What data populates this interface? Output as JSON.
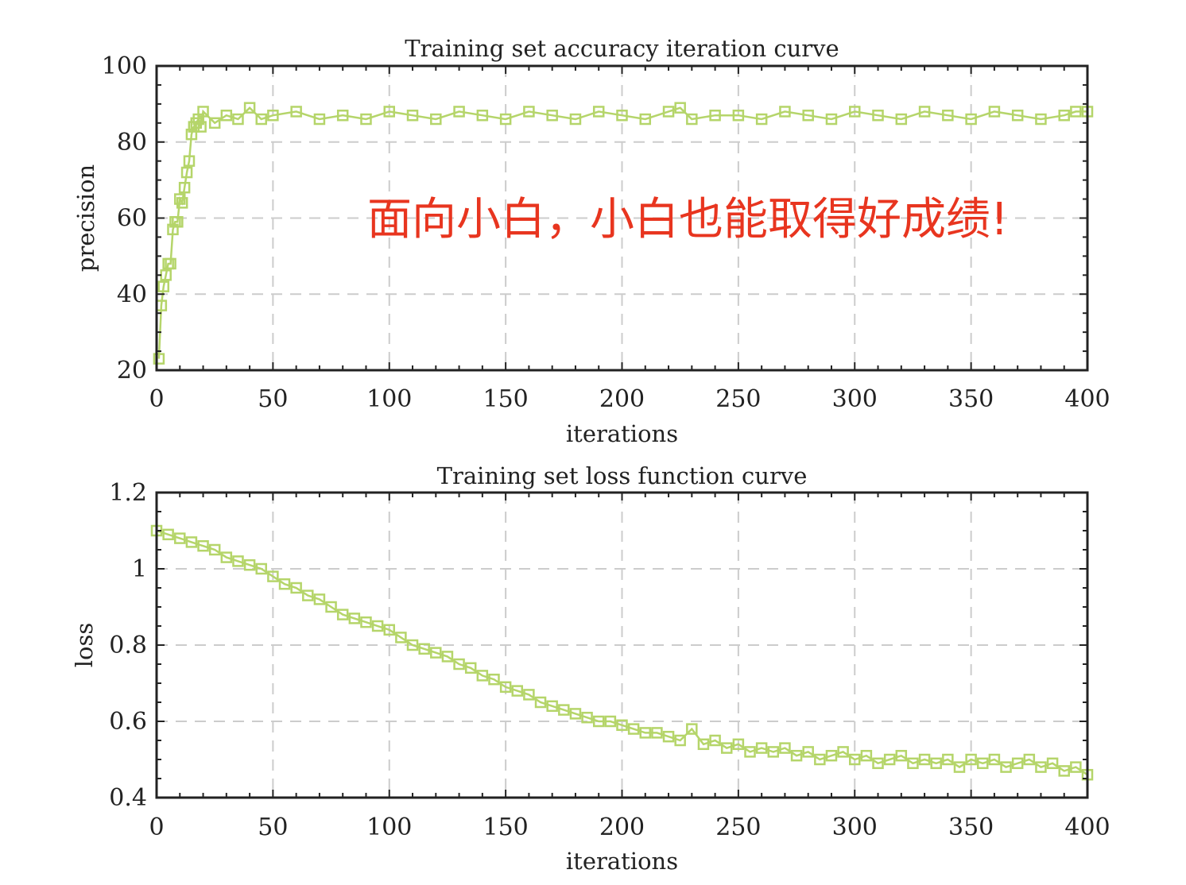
{
  "annotation": {
    "text": "面向小白，小白也能取得好成绩!",
    "color": "#e8351f"
  },
  "colors": {
    "series": "#b5d56a",
    "axis": "#222222",
    "grid": "#cccccc"
  },
  "chart_data": [
    {
      "type": "line",
      "title": "Training set accuracy iteration curve",
      "xlabel": "iterations",
      "ylabel": "precision",
      "xlim": [
        0,
        400
      ],
      "ylim": [
        20,
        100
      ],
      "xticks": [
        "0",
        "50",
        "100",
        "150",
        "200",
        "250",
        "300",
        "350",
        "400"
      ],
      "yticks": [
        "20",
        "40",
        "60",
        "80",
        "100"
      ],
      "grid": true,
      "marker": "square",
      "series": [
        {
          "x": [
            1,
            2,
            3,
            4,
            5,
            6,
            7,
            8,
            9,
            10,
            11,
            12,
            13,
            14,
            15,
            16,
            17,
            18,
            19,
            20,
            25,
            30,
            35,
            40,
            45,
            50,
            60,
            70,
            80,
            90,
            100,
            110,
            120,
            130,
            140,
            150,
            160,
            170,
            180,
            190,
            200,
            210,
            220,
            225,
            230,
            240,
            250,
            260,
            270,
            280,
            290,
            300,
            310,
            320,
            330,
            340,
            350,
            360,
            370,
            380,
            390,
            395,
            400
          ],
          "y": [
            23,
            37,
            42,
            45,
            48,
            48,
            57,
            59,
            59,
            65,
            64,
            68,
            72,
            75,
            82,
            84,
            85,
            86,
            84,
            88,
            85,
            87,
            86,
            89,
            86,
            87,
            88,
            86,
            87,
            86,
            88,
            87,
            86,
            88,
            87,
            86,
            88,
            87,
            86,
            88,
            87,
            86,
            88,
            89,
            86,
            87,
            87,
            86,
            88,
            87,
            86,
            88,
            87,
            86,
            88,
            87,
            86,
            88,
            87,
            86,
            87,
            88,
            88
          ]
        }
      ]
    },
    {
      "type": "line",
      "title": "Training set loss function curve",
      "xlabel": "iterations",
      "ylabel": "loss",
      "xlim": [
        0,
        400
      ],
      "ylim": [
        0.4,
        1.2
      ],
      "xticks": [
        "0",
        "50",
        "100",
        "150",
        "200",
        "250",
        "300",
        "350",
        "400"
      ],
      "yticks": [
        "0.4",
        "0.6",
        "0.8",
        "1",
        "1.2"
      ],
      "grid": true,
      "marker": "square",
      "series": [
        {
          "x": [
            0,
            5,
            10,
            15,
            20,
            25,
            30,
            35,
            40,
            45,
            50,
            55,
            60,
            65,
            70,
            75,
            80,
            85,
            90,
            95,
            100,
            105,
            110,
            115,
            120,
            125,
            130,
            135,
            140,
            145,
            150,
            155,
            160,
            165,
            170,
            175,
            180,
            185,
            190,
            195,
            200,
            205,
            210,
            215,
            220,
            225,
            230,
            235,
            240,
            245,
            250,
            255,
            260,
            265,
            270,
            275,
            280,
            285,
            290,
            295,
            300,
            305,
            310,
            315,
            320,
            325,
            330,
            335,
            340,
            345,
            350,
            355,
            360,
            365,
            370,
            375,
            380,
            385,
            390,
            395,
            400
          ],
          "y": [
            1.1,
            1.09,
            1.08,
            1.07,
            1.06,
            1.05,
            1.03,
            1.02,
            1.01,
            1.0,
            0.98,
            0.96,
            0.95,
            0.93,
            0.92,
            0.9,
            0.88,
            0.87,
            0.86,
            0.85,
            0.84,
            0.82,
            0.8,
            0.79,
            0.78,
            0.77,
            0.75,
            0.74,
            0.72,
            0.71,
            0.69,
            0.68,
            0.67,
            0.65,
            0.64,
            0.63,
            0.62,
            0.61,
            0.6,
            0.6,
            0.59,
            0.58,
            0.57,
            0.57,
            0.56,
            0.55,
            0.58,
            0.54,
            0.55,
            0.53,
            0.54,
            0.52,
            0.53,
            0.52,
            0.53,
            0.51,
            0.52,
            0.5,
            0.51,
            0.52,
            0.5,
            0.51,
            0.49,
            0.5,
            0.51,
            0.49,
            0.5,
            0.49,
            0.5,
            0.48,
            0.5,
            0.49,
            0.5,
            0.48,
            0.49,
            0.5,
            0.48,
            0.49,
            0.47,
            0.48,
            0.46
          ]
        }
      ]
    }
  ]
}
